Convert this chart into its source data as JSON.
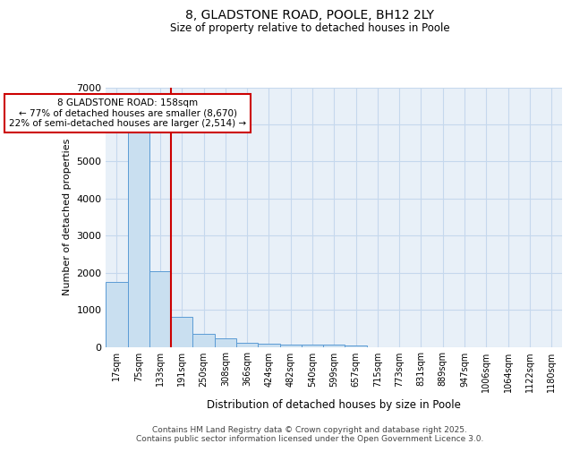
{
  "title1": "8, GLADSTONE ROAD, POOLE, BH12 2LY",
  "title2": "Size of property relative to detached houses in Poole",
  "xlabel": "Distribution of detached houses by size in Poole",
  "ylabel": "Number of detached properties",
  "bar_labels": [
    "17sqm",
    "75sqm",
    "133sqm",
    "191sqm",
    "250sqm",
    "308sqm",
    "366sqm",
    "424sqm",
    "482sqm",
    "540sqm",
    "599sqm",
    "657sqm",
    "715sqm",
    "773sqm",
    "831sqm",
    "889sqm",
    "947sqm",
    "1006sqm",
    "1064sqm",
    "1122sqm",
    "1180sqm"
  ],
  "bar_values": [
    1750,
    5800,
    2050,
    820,
    360,
    225,
    120,
    85,
    70,
    60,
    55,
    40,
    0,
    0,
    0,
    0,
    0,
    0,
    0,
    0,
    0
  ],
  "bar_color": "#c9dff0",
  "bar_edge_color": "#5b9bd5",
  "vline_x": 2.5,
  "vline_color": "#cc0000",
  "annotation_text": "8 GLADSTONE ROAD: 158sqm\n← 77% of detached houses are smaller (8,670)\n22% of semi-detached houses are larger (2,514) →",
  "annotation_box_color": "#cc0000",
  "ylim": [
    0,
    7000
  ],
  "yticks": [
    0,
    1000,
    2000,
    3000,
    4000,
    5000,
    6000,
    7000
  ],
  "grid_color": "#c5d8ed",
  "bg_color": "#e8f0f8",
  "footer1": "Contains HM Land Registry data © Crown copyright and database right 2025.",
  "footer2": "Contains public sector information licensed under the Open Government Licence 3.0."
}
